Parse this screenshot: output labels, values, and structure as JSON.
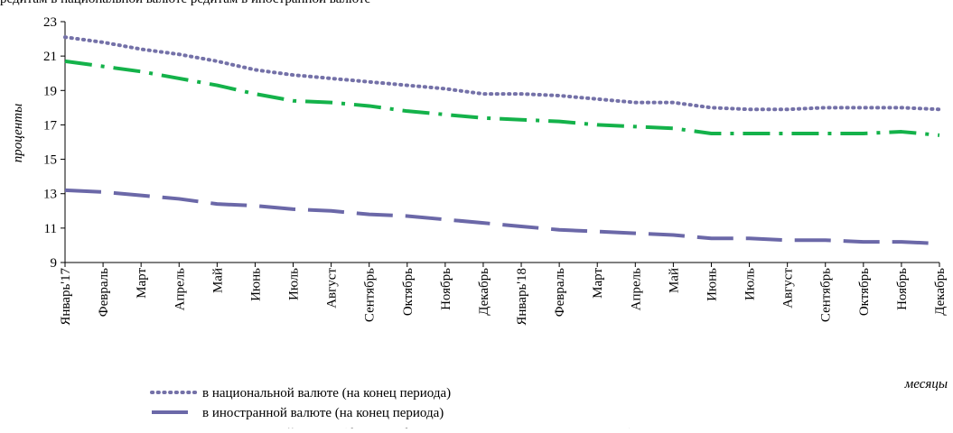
{
  "header": {
    "caption": "редитам в национальной валюте     редитам в иностранной валюте"
  },
  "chart_data": {
    "type": "line",
    "title": "",
    "xlabel": "месяцы",
    "ylabel": "проценты",
    "ylim": [
      9,
      23
    ],
    "yticks": [
      9,
      11,
      13,
      15,
      17,
      19,
      21,
      23
    ],
    "grid": false,
    "legend_position": "bottom-left",
    "categories": [
      "Январь'17",
      "Февраль",
      "Март",
      "Апрель",
      "Май",
      "Июнь",
      "Июль",
      "Август",
      "Сентябрь",
      "Октябрь",
      "Ноябрь",
      "Декабрь",
      "Январь'18",
      "Февраль",
      "Март",
      "Апрель",
      "Май",
      "Июнь",
      "Июль",
      "Август",
      "Сентябрь",
      "Октябрь",
      "Ноябрь",
      "Декабрь"
    ],
    "series": [
      {
        "name": "в национальной валюте (на конец периода)",
        "color": "#7471a8",
        "style": "dotted",
        "values": [
          22.1,
          21.8,
          21.4,
          21.1,
          20.7,
          20.2,
          19.9,
          19.7,
          19.5,
          19.3,
          19.1,
          18.8,
          18.8,
          18.7,
          18.5,
          18.3,
          18.3,
          18.0,
          17.9,
          17.9,
          18.0,
          18.0,
          18.0,
          17.9
        ]
      },
      {
        "name": "в иностранной валюте (на конец периода)",
        "color": "#6b68a8",
        "style": "dashed",
        "values": [
          13.2,
          13.1,
          12.9,
          12.7,
          12.4,
          12.3,
          12.1,
          12.0,
          11.8,
          11.7,
          11.5,
          11.3,
          11.1,
          10.9,
          10.8,
          10.7,
          10.6,
          10.4,
          10.4,
          10.3,
          10.3,
          10.2,
          10.2,
          10.1
        ]
      },
      {
        "name": "в национальной валюте (без потребительских кредитов, на конец периода)",
        "color": "#14b24a",
        "style": "dashdot",
        "values": [
          20.7,
          20.4,
          20.1,
          19.7,
          19.3,
          18.8,
          18.4,
          18.3,
          18.1,
          17.8,
          17.6,
          17.4,
          17.3,
          17.2,
          17.0,
          16.9,
          16.8,
          16.5,
          16.5,
          16.5,
          16.5,
          16.5,
          16.6,
          16.4
        ]
      }
    ]
  }
}
